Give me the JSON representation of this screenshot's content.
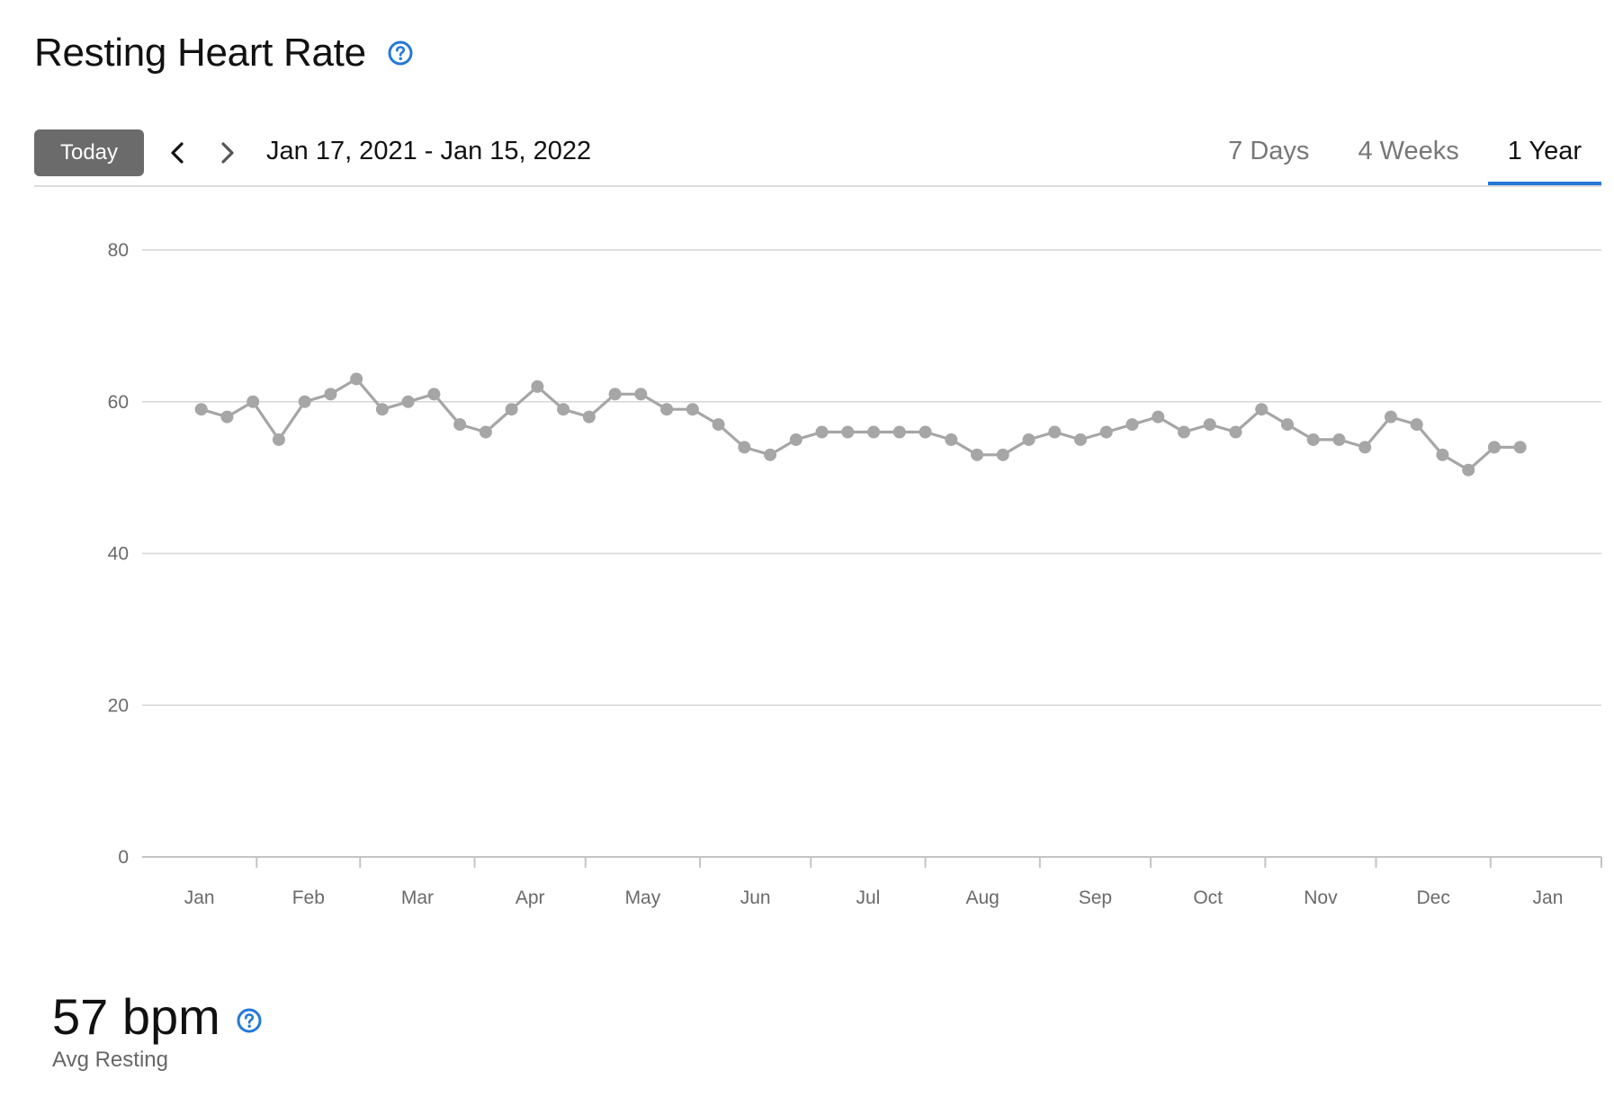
{
  "header": {
    "title": "Resting Heart Rate"
  },
  "toolbar": {
    "today_label": "Today",
    "date_range": "Jan 17, 2021 - Jan 15, 2022",
    "tabs": [
      {
        "label": "7 Days",
        "active": false
      },
      {
        "label": "4 Weeks",
        "active": false
      },
      {
        "label": "1 Year",
        "active": true
      }
    ]
  },
  "summary": {
    "value": "57 bpm",
    "label": "Avg Resting"
  },
  "colors": {
    "accent": "#2479d6",
    "series": "#a6a6a6",
    "grid": "#d6d6d6",
    "button": "#6b6b6b"
  },
  "chart_data": {
    "type": "line",
    "title": "",
    "xlabel": "",
    "ylabel": "",
    "ylim": [
      0,
      80
    ],
    "yticks": [
      0,
      20,
      40,
      60,
      80
    ],
    "grid": true,
    "months": [
      "Jan",
      "Feb",
      "Mar",
      "Apr",
      "May",
      "Jun",
      "Jul",
      "Aug",
      "Sep",
      "Oct",
      "Nov",
      "Dec",
      "Jan"
    ],
    "x": [
      "2021-01-17",
      "2021-01-24",
      "2021-01-31",
      "2021-02-07",
      "2021-02-14",
      "2021-02-21",
      "2021-02-28",
      "2021-03-07",
      "2021-03-14",
      "2021-03-21",
      "2021-03-28",
      "2021-04-04",
      "2021-04-11",
      "2021-04-18",
      "2021-04-25",
      "2021-05-02",
      "2021-05-09",
      "2021-05-16",
      "2021-05-23",
      "2021-05-30",
      "2021-06-06",
      "2021-06-13",
      "2021-06-20",
      "2021-06-27",
      "2021-07-04",
      "2021-07-11",
      "2021-07-18",
      "2021-07-25",
      "2021-08-01",
      "2021-08-08",
      "2021-08-15",
      "2021-08-22",
      "2021-08-29",
      "2021-09-05",
      "2021-09-12",
      "2021-09-19",
      "2021-09-26",
      "2021-10-03",
      "2021-10-10",
      "2021-10-17",
      "2021-10-24",
      "2021-10-31",
      "2021-11-07",
      "2021-11-14",
      "2021-11-21",
      "2021-11-28",
      "2021-12-05",
      "2021-12-12",
      "2021-12-19",
      "2021-12-26",
      "2022-01-02",
      "2022-01-09"
    ],
    "series": [
      {
        "values": [
          59,
          58,
          60,
          55,
          60,
          61,
          63,
          59,
          60,
          61,
          57,
          56,
          59,
          62,
          59,
          58,
          61,
          61,
          59,
          59,
          57,
          54,
          53,
          55,
          56,
          56,
          56,
          56,
          56,
          55,
          53,
          53,
          55,
          56,
          55,
          56,
          57,
          58,
          56,
          57,
          56,
          59,
          57,
          55,
          55,
          54,
          58,
          57,
          53,
          51,
          54,
          54
        ]
      }
    ]
  }
}
